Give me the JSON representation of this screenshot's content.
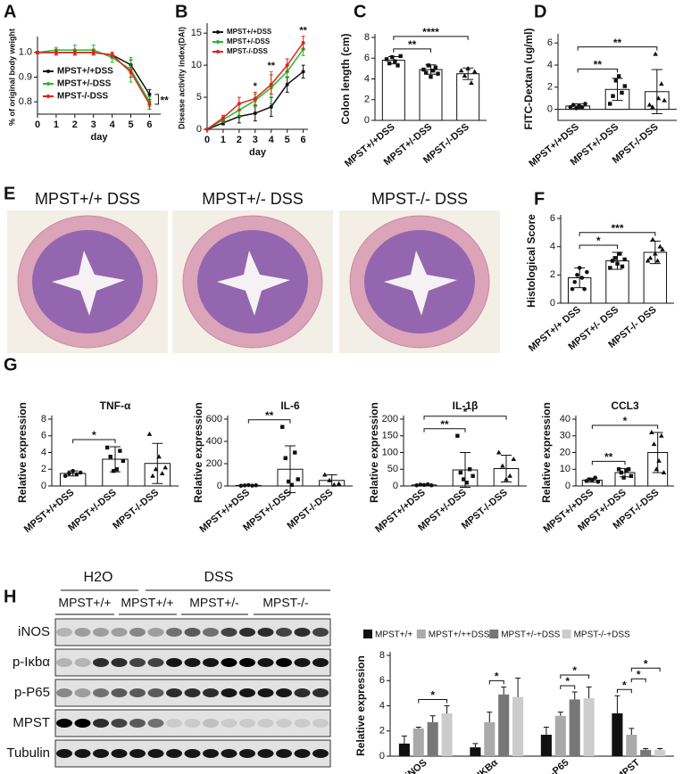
{
  "panel_letters": [
    "A",
    "B",
    "C",
    "D",
    "E",
    "F",
    "G",
    "H"
  ],
  "histology": {
    "panels": [
      "MPST+/+ DSS",
      "MPST+/- DSS",
      "MPST-/- DSS"
    ]
  },
  "western_blot": {
    "top_labels": [
      "H2O",
      "DSS"
    ],
    "groups": [
      "MPST+/+",
      "MPST+/+",
      "MPST+/-",
      "MPST-/-"
    ],
    "rows": [
      "iNOS",
      "p-Iκbα",
      "p-P65",
      "MPST",
      "Tubulin"
    ]
  },
  "chart_data": [
    {
      "type": "line",
      "y_label": "% of original body weight",
      "x_label": "day",
      "x": [
        0,
        1,
        2,
        3,
        4,
        5,
        6
      ],
      "xlim": [
        0,
        6.6
      ],
      "xticks": [
        0,
        1,
        2,
        3,
        4,
        5,
        6
      ],
      "ylim": [
        0.75,
        1.05
      ],
      "yticks": [
        0.8,
        0.9,
        {
          "value": 1,
          "label": "1.0"
        }
      ],
      "legend": "lower left",
      "series": [
        {
          "name": "MPST+/+DSS",
          "color": "#111111",
          "values": [
            1,
            1,
            1,
            1,
            0.99,
            0.95,
            0.83
          ],
          "errors": [
            0.005,
            0.01,
            0.01,
            0.01,
            0.01,
            0.02,
            0.02
          ]
        },
        {
          "name": "MPST+/-DSS",
          "color": "#22bb22",
          "values": [
            1,
            1.01,
            1.01,
            1.01,
            0.98,
            0.93,
            0.8
          ],
          "errors": [
            0.005,
            0.01,
            0.02,
            0.02,
            0.02,
            0.05,
            0.02
          ]
        },
        {
          "name": "MPST-/-DSS",
          "color": "#e02020",
          "values": [
            1,
            1,
            1,
            1,
            0.99,
            0.92,
            0.79
          ],
          "errors": [
            0.005,
            0.01,
            0.01,
            0.01,
            0.01,
            0.02,
            0.02
          ]
        }
      ],
      "annotations": [
        {
          "x": 6,
          "label": "**",
          "side": "right"
        }
      ]
    },
    {
      "type": "line",
      "y_label": "Disease activity index(DAI)",
      "x_label": "day",
      "x": [
        0,
        1,
        2,
        3,
        4,
        5,
        6
      ],
      "xlim": [
        0,
        6.3
      ],
      "xticks": [
        0,
        1,
        2,
        3,
        4,
        5,
        6
      ],
      "ylim": [
        0,
        16
      ],
      "yticks": [
        0,
        5,
        10,
        15
      ],
      "legend": "upper left",
      "series": [
        {
          "name": "MPST+/+DSS",
          "color": "#111111",
          "values": [
            0,
            1,
            2,
            2.5,
            3.5,
            7,
            9
          ],
          "errors": [
            0,
            0.3,
            1,
            1.2,
            1.5,
            1.2,
            1
          ]
        },
        {
          "name": "MPST+/-DSS",
          "color": "#22bb22",
          "values": [
            0,
            1.5,
            3,
            4.5,
            6.5,
            9,
            12.5
          ],
          "errors": [
            0,
            0.4,
            1,
            1,
            2.5,
            1,
            1
          ]
        },
        {
          "name": "MPST-/-DSS",
          "color": "#e02020",
          "values": [
            0,
            1.8,
            4,
            4.8,
            7,
            10,
            13.5
          ],
          "errors": [
            0,
            0.4,
            1,
            1,
            1.5,
            1,
            1
          ]
        }
      ],
      "annotations": [
        {
          "x": 3,
          "label": "*"
        },
        {
          "x": 4,
          "label": "**"
        },
        {
          "x": 6,
          "label": "**"
        }
      ]
    },
    {
      "type": "bar",
      "y_label": "Colon length (cm)",
      "categories": [
        "MPST+/+DSS",
        "MPST+/-DSS",
        "MPST-/-DSS"
      ],
      "values": [
        5.8,
        4.9,
        4.5
      ],
      "errors": [
        0.35,
        0.45,
        0.55
      ],
      "markers": [
        "square",
        "square",
        "triangle"
      ],
      "points": [
        [
          5.9,
          5.5,
          6.1,
          5.7,
          5.3,
          6.2
        ],
        [
          4.9,
          4.6,
          5.3,
          4.2,
          4.8,
          5.1,
          4.5
        ],
        [
          4.8,
          4.3,
          5,
          3.6,
          4.7
        ]
      ],
      "ylim": [
        0,
        8
      ],
      "yticks": [
        0,
        2,
        4,
        6,
        8
      ],
      "brackets": [
        {
          "between": [
            "MPST+/+DSS",
            "MPST+/-DSS"
          ],
          "label": "**"
        },
        {
          "between": [
            "MPST+/+DSS",
            "MPST-/-DSS"
          ],
          "label": "****"
        }
      ]
    },
    {
      "type": "bar",
      "y_label": "FITC-Dextan (ug/ml)",
      "categories": [
        "MPST+/+DSS",
        "MPST+/-DSS",
        "MPST-/-DSS"
      ],
      "values": [
        0.3,
        1.8,
        1.6
      ],
      "errors": [
        0.2,
        1,
        2
      ],
      "markers": [
        "circle",
        "square",
        "triangle"
      ],
      "points": [
        [
          0.2,
          0.4,
          0.1,
          0.3,
          0.2,
          0.5
        ],
        [
          0.5,
          1.2,
          2.6,
          3,
          1.5,
          2.1
        ],
        [
          0.4,
          0.2,
          5,
          1,
          2.3,
          0.8
        ]
      ],
      "ylim": [
        -1,
        6.5
      ],
      "yticks": [
        0,
        2,
        4,
        6
      ],
      "brackets": [
        {
          "between": [
            "MPST+/+DSS",
            "MPST+/-DSS"
          ],
          "label": "**"
        },
        {
          "between": [
            "MPST+/+DSS",
            "MPST-/-DSS"
          ],
          "label": "**"
        }
      ]
    },
    {
      "type": "bar",
      "y_label": "Histological Score",
      "categories": [
        "MPST+/+ DSS",
        "MPST+/- DSS",
        "MPST-/- DSS"
      ],
      "values": [
        1.8,
        3,
        3.6
      ],
      "errors": [
        0.7,
        0.6,
        0.8
      ],
      "markers": [
        "circle",
        "square",
        "triangle"
      ],
      "points": [
        [
          1,
          1.5,
          2,
          2.5,
          1.8,
          1,
          2.2
        ],
        [
          2.5,
          3,
          3.2,
          2.8,
          3.5,
          2.6,
          3.1
        ],
        [
          3,
          3.2,
          4.5,
          3.5,
          3,
          4,
          3.8
        ]
      ],
      "ylim": [
        0,
        6
      ],
      "yticks": [
        0,
        2,
        4,
        6
      ],
      "brackets": [
        {
          "between": [
            "MPST+/+ DSS",
            "MPST+/- DSS"
          ],
          "label": "*"
        },
        {
          "between": [
            "MPST+/+ DSS",
            "MPST-/- DSS"
          ],
          "label": "***"
        }
      ]
    },
    {
      "type": "bar",
      "title": "TNF-α",
      "y_label": "Relative expression",
      "categories": [
        "MPST+/+DSS",
        "MPST+/-DSS",
        "MPST-/-DSS"
      ],
      "values": [
        1.5,
        3.2,
        2.7
      ],
      "errors": [
        0.3,
        1.5,
        2.4
      ],
      "markers": [
        "circle",
        "square",
        "triangle"
      ],
      "points": [
        [
          1.2,
          1.5,
          1.8,
          1.4,
          1.6
        ],
        [
          4.6,
          3.5,
          1.8,
          2,
          4.2,
          3
        ],
        [
          6.2,
          1.2,
          2,
          3.5,
          1.5,
          2.2
        ]
      ],
      "ylim": [
        0,
        8
      ],
      "yticks": [
        0,
        2,
        4,
        6,
        8
      ],
      "brackets": [
        {
          "between": [
            "MPST+/+DSS",
            "MPST+/-DSS"
          ],
          "label": "*"
        }
      ]
    },
    {
      "type": "bar",
      "title": "IL-6",
      "y_label": "Relative expression",
      "categories": [
        "MPST+/+DSS",
        "MPST+/-DSS",
        "MPST-/-DSS"
      ],
      "values": [
        5,
        150,
        50
      ],
      "errors": [
        3,
        210,
        50
      ],
      "markers": [
        "circle",
        "square",
        "triangle"
      ],
      "points": [
        [
          2,
          5,
          8,
          3,
          6
        ],
        [
          530,
          250,
          40,
          10,
          300,
          60
        ],
        [
          100,
          50,
          10,
          20
        ]
      ],
      "ylim": [
        0,
        600
      ],
      "yticks": [
        0,
        200,
        400,
        600
      ],
      "brackets": [
        {
          "between": [
            "MPST+/+DSS",
            "MPST+/-DSS"
          ],
          "label": "**"
        }
      ]
    },
    {
      "type": "bar",
      "title": "IL-1β",
      "y_label": "Relative expression",
      "categories": [
        "MPST+/+DSS",
        "MPST+/-DSS",
        "MPST-/-DSS"
      ],
      "values": [
        3,
        48,
        52
      ],
      "errors": [
        2,
        52,
        40
      ],
      "markers": [
        "circle",
        "square",
        "triangle"
      ],
      "points": [
        [
          2,
          4,
          3,
          5,
          2
        ],
        [
          150,
          40,
          20,
          10,
          50,
          30
        ],
        [
          100,
          60,
          20,
          30,
          80
        ]
      ],
      "ylim": [
        0,
        200
      ],
      "yticks": [
        0,
        50,
        100,
        150,
        200
      ],
      "brackets": [
        {
          "between": [
            "MPST+/+DSS",
            "MPST+/-DSS"
          ],
          "label": "**"
        },
        {
          "between": [
            "MPST+/+DSS",
            "MPST-/-DSS"
          ],
          "label": "*"
        }
      ]
    },
    {
      "type": "bar",
      "title": "CCL3",
      "y_label": "Relative expression",
      "categories": [
        "MPST+/+DSS",
        "MPST+/-DSS",
        "MPST-/-DSS"
      ],
      "values": [
        3.5,
        8,
        20
      ],
      "errors": [
        1.2,
        2.5,
        12
      ],
      "markers": [
        "circle",
        "square",
        "triangle"
      ],
      "points": [
        [
          3,
          4,
          3.5,
          5,
          2.5
        ],
        [
          10,
          8,
          5,
          9,
          10,
          6
        ],
        [
          32,
          25,
          10,
          15,
          30,
          8
        ]
      ],
      "ylim": [
        0,
        40
      ],
      "yticks": [
        0,
        10,
        20,
        30,
        40
      ],
      "brackets": [
        {
          "between": [
            "MPST+/+DSS",
            "MPST+/-DSS"
          ],
          "label": "**"
        },
        {
          "between": [
            "MPST+/+DSS",
            "MPST-/-DSS"
          ],
          "label": "*"
        }
      ]
    },
    {
      "type": "bar",
      "y_label": "Relative expression",
      "categories": [
        "iNOS",
        "p-IKBα",
        "p-P65",
        "MPST"
      ],
      "series": [
        {
          "name": "MPST+/+",
          "color": "#111111",
          "values": [
            1,
            0.7,
            1.7,
            3.4
          ],
          "errors": [
            0.6,
            0.3,
            0.6,
            1.4
          ]
        },
        {
          "name": "MPST+/++DSS",
          "color": "#aaaaaa",
          "values": [
            2.2,
            2.7,
            3.2,
            1.7
          ],
          "errors": [
            0.1,
            0.8,
            0.3,
            0.5
          ]
        },
        {
          "name": "MPST+/-+DSS",
          "color": "#777777",
          "values": [
            2.7,
            4.9,
            4.5,
            0.5
          ],
          "errors": [
            0.5,
            0.6,
            0.6,
            0.1
          ]
        },
        {
          "name": "MPST-/-+DSS",
          "color": "#cccccc",
          "values": [
            3.4,
            4.7,
            4.6,
            0.5
          ],
          "errors": [
            0.6,
            1.5,
            0.9,
            0.1
          ]
        }
      ],
      "ylim": [
        0,
        8
      ],
      "yticks": [
        0,
        2,
        4,
        6,
        8
      ],
      "brackets": [
        {
          "category": "iNOS",
          "between": [
            "MPST+/++DSS",
            "MPST-/-+DSS"
          ],
          "label": "*"
        },
        {
          "category": "p-IKBα",
          "between": [
            "MPST+/++DSS",
            "MPST+/-+DSS"
          ],
          "label": "*"
        },
        {
          "category": "p-P65",
          "between": [
            "MPST+/++DSS",
            "MPST+/-+DSS"
          ],
          "label": "*"
        },
        {
          "category": "p-P65",
          "between": [
            "MPST+/++DSS",
            "MPST-/-+DSS"
          ],
          "label": "*"
        },
        {
          "category": "MPST",
          "between": [
            "MPST+/+",
            "MPST+/++DSS"
          ],
          "label": "*"
        },
        {
          "category": "MPST",
          "between": [
            "MPST+/++DSS",
            "MPST+/-+DSS"
          ],
          "label": "*"
        },
        {
          "category": "MPST",
          "between": [
            "MPST+/++DSS",
            "MPST-/-+DSS"
          ],
          "label": "*"
        }
      ]
    }
  ]
}
